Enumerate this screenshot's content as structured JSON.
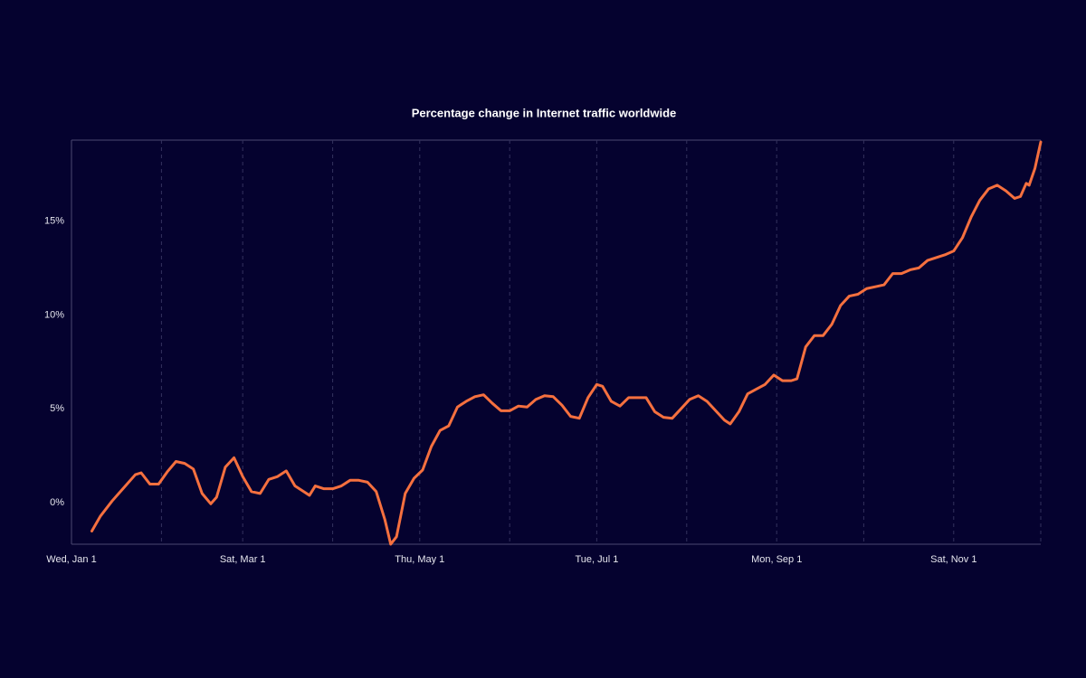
{
  "chart_data": {
    "type": "line",
    "title": "Percentage change in Internet traffic worldwide",
    "x": [
      "Jan 8",
      "Jan 11",
      "Jan 15",
      "Jan 19",
      "Jan 23",
      "Jan 25",
      "Jan 28",
      "Jan 31",
      "Feb 3",
      "Feb 6",
      "Feb 9",
      "Feb 12",
      "Feb 15",
      "Feb 18",
      "Feb 20",
      "Feb 23",
      "Feb 26",
      "Mar 1",
      "Mar 4",
      "Mar 7",
      "Mar 10",
      "Mar 13",
      "Mar 16",
      "Mar 19",
      "Mar 22",
      "Mar 24",
      "Mar 26",
      "Mar 29",
      "Apr 1",
      "Apr 4",
      "Apr 7",
      "Apr 10",
      "Apr 13",
      "Apr 16",
      "Apr 19",
      "Apr 21",
      "Apr 23",
      "Apr 26",
      "Apr 29",
      "May 2",
      "May 5",
      "May 8",
      "May 11",
      "May 14",
      "May 17",
      "May 20",
      "May 23",
      "May 26",
      "May 29",
      "Jun 1",
      "Jun 4",
      "Jun 7",
      "Jun 10",
      "Jun 13",
      "Jun 16",
      "Jun 19",
      "Jun 22",
      "Jun 25",
      "Jun 28",
      "Jul 1",
      "Jul 3",
      "Jul 6",
      "Jul 9",
      "Jul 12",
      "Jul 15",
      "Jul 18",
      "Jul 21",
      "Jul 24",
      "Jul 27",
      "Jul 30",
      "Aug 2",
      "Aug 5",
      "Aug 8",
      "Aug 11",
      "Aug 14",
      "Aug 16",
      "Aug 19",
      "Aug 22",
      "Aug 25",
      "Aug 28",
      "Aug 31",
      "Sep 3",
      "Sep 6",
      "Sep 8",
      "Sep 11",
      "Sep 14",
      "Sep 17",
      "Sep 20",
      "Sep 23",
      "Sep 26",
      "Sep 29",
      "Oct 2",
      "Oct 5",
      "Oct 8",
      "Oct 11",
      "Oct 14",
      "Oct 17",
      "Oct 20",
      "Oct 23",
      "Oct 26",
      "Oct 29",
      "Nov 1",
      "Nov 4",
      "Nov 7",
      "Nov 10",
      "Nov 13",
      "Nov 16",
      "Nov 19",
      "Nov 22",
      "Nov 24",
      "Nov 26",
      "Nov 27",
      "Nov 29",
      "Dec 1"
    ],
    "series": [
      {
        "color": "#f5703f",
        "values": [
          -1.5,
          -0.7,
          0.1,
          0.8,
          1.5,
          1.6,
          1.0,
          1.0,
          1.65,
          2.2,
          2.1,
          1.8,
          0.5,
          -0.05,
          0.3,
          1.9,
          2.4,
          1.4,
          0.6,
          0.5,
          1.25,
          1.4,
          1.7,
          0.9,
          0.6,
          0.4,
          0.9,
          0.75,
          0.75,
          0.9,
          1.2,
          1.2,
          1.1,
          0.6,
          -0.9,
          -2.2,
          -1.8,
          0.5,
          1.3,
          1.75,
          3.0,
          3.85,
          4.1,
          5.1,
          5.4,
          5.65,
          5.75,
          5.3,
          4.9,
          4.9,
          5.15,
          5.1,
          5.5,
          5.7,
          5.65,
          5.2,
          4.6,
          4.5,
          5.6,
          6.3,
          6.2,
          5.4,
          5.15,
          5.6,
          5.6,
          5.6,
          4.85,
          4.55,
          4.5,
          5.0,
          5.5,
          5.7,
          5.4,
          4.9,
          4.4,
          4.2,
          4.85,
          5.8,
          6.05,
          6.3,
          6.8,
          6.5,
          6.5,
          6.6,
          8.3,
          8.9,
          8.9,
          9.5,
          10.5,
          11.0,
          11.1,
          11.4,
          11.5,
          11.6,
          12.2,
          12.2,
          12.4,
          12.5,
          12.9,
          13.05,
          13.2,
          13.4,
          14.1,
          15.2,
          16.1,
          16.7,
          16.9,
          16.6,
          16.2,
          16.3,
          17.0,
          16.9,
          17.8,
          19.2
        ]
      }
    ],
    "xlim": [
      "Jan 1",
      "Dec 1"
    ],
    "xticks": [
      {
        "value": "Jan 1",
        "label": "Wed, Jan 1"
      },
      {
        "value": "Feb 1",
        "label": null
      },
      {
        "value": "Mar 1",
        "label": "Sat, Mar 1"
      },
      {
        "value": "Apr 1",
        "label": null
      },
      {
        "value": "May 1",
        "label": "Thu, May 1"
      },
      {
        "value": "Jun 1",
        "label": null
      },
      {
        "value": "Jul 1",
        "label": "Tue, Jul 1"
      },
      {
        "value": "Aug 1",
        "label": null
      },
      {
        "value": "Sep 1",
        "label": "Mon, Sep 1"
      },
      {
        "value": "Oct 1",
        "label": null
      },
      {
        "value": "Nov 1",
        "label": "Sat, Nov 1"
      },
      {
        "value": "Dec 1",
        "label": null
      }
    ],
    "ylim": [
      -2.2,
      19.3
    ],
    "yticks": [
      {
        "value": 0,
        "label": "0%"
      },
      {
        "value": 5,
        "label": "5%"
      },
      {
        "value": 10,
        "label": "10%"
      },
      {
        "value": 15,
        "label": "15%"
      }
    ],
    "grid": true
  }
}
